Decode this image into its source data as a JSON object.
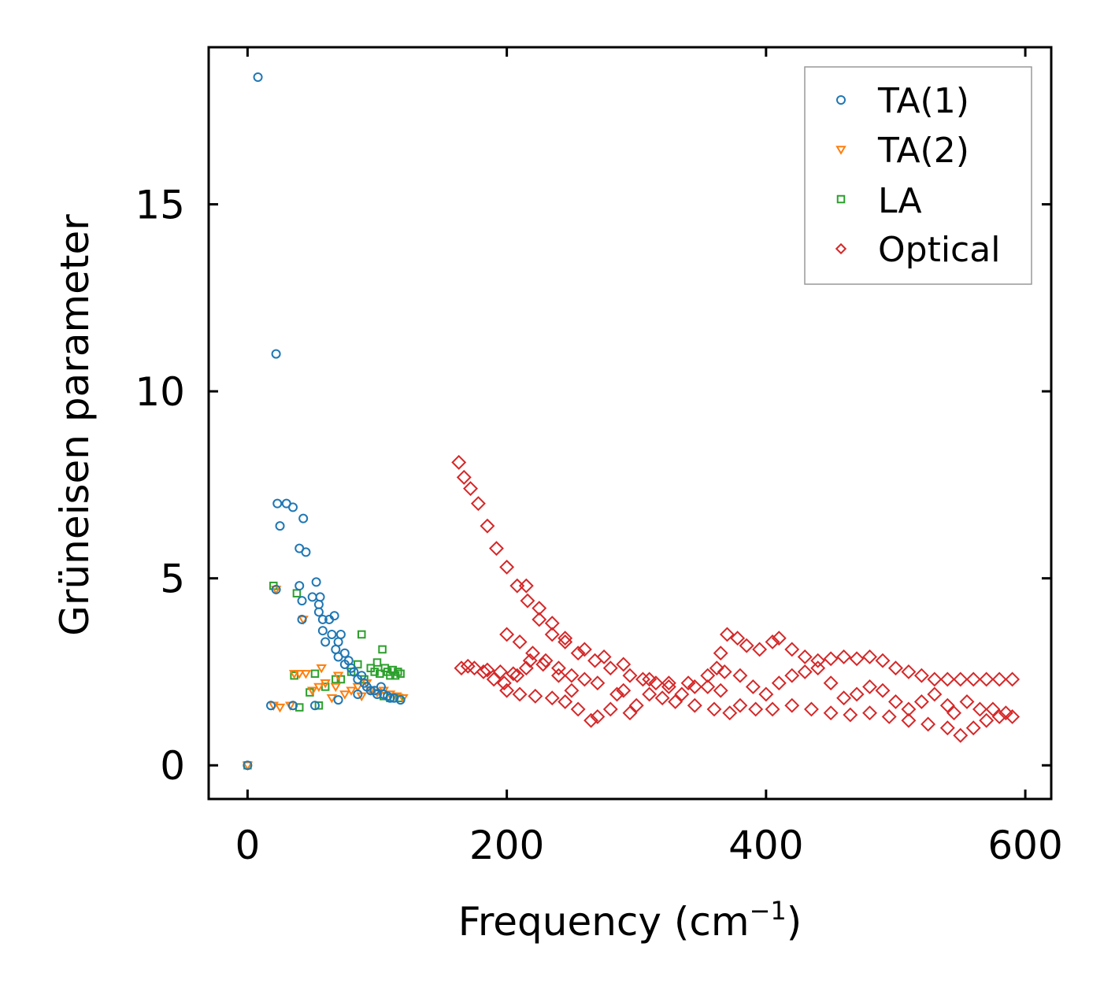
{
  "chart_data": {
    "type": "scatter",
    "title": "",
    "xlabel": "Frequency (cm",
    "xlabel_superscript": "−1",
    "xlabel_close": ")",
    "ylabel": "Grüneisen parameter",
    "xlim": [
      -30,
      620
    ],
    "ylim": [
      -0.9,
      19.2
    ],
    "x_ticks": [
      0,
      200,
      400,
      600
    ],
    "y_ticks": [
      0,
      5,
      10,
      15
    ],
    "x_tick_labels": [
      "0",
      "200",
      "400",
      "600"
    ],
    "y_tick_labels": [
      "0",
      "5",
      "10",
      "15"
    ],
    "legend_position": "top-right",
    "series": [
      {
        "name": "TA(1)",
        "marker": "circle",
        "color": "#1f77b4",
        "points": [
          [
            0,
            0
          ],
          [
            8,
            18.4
          ],
          [
            22,
            11
          ],
          [
            22,
            4.7
          ],
          [
            23,
            7
          ],
          [
            25,
            6.4
          ],
          [
            30,
            7
          ],
          [
            35,
            6.9
          ],
          [
            40,
            5.8
          ],
          [
            40,
            4.8
          ],
          [
            42,
            4.4
          ],
          [
            42,
            3.9
          ],
          [
            43,
            6.6
          ],
          [
            45,
            5.7
          ],
          [
            50,
            4.5
          ],
          [
            53,
            4.9
          ],
          [
            55,
            4.3
          ],
          [
            55,
            4.1
          ],
          [
            56,
            4.5
          ],
          [
            58,
            3.6
          ],
          [
            58,
            3.9
          ],
          [
            60,
            3.3
          ],
          [
            63,
            3.9
          ],
          [
            65,
            3.5
          ],
          [
            67,
            4.0
          ],
          [
            68,
            3.1
          ],
          [
            70,
            3.3
          ],
          [
            70,
            2.9
          ],
          [
            72,
            3.5
          ],
          [
            75,
            3.0
          ],
          [
            75,
            2.7
          ],
          [
            78,
            2.8
          ],
          [
            80,
            2.6
          ],
          [
            82,
            2.5
          ],
          [
            85,
            2.3
          ],
          [
            88,
            2.4
          ],
          [
            90,
            2.2
          ],
          [
            92,
            2.1
          ],
          [
            95,
            2.0
          ],
          [
            98,
            2.0
          ],
          [
            100,
            1.9
          ],
          [
            103,
            2.1
          ],
          [
            105,
            1.9
          ],
          [
            108,
            1.85
          ],
          [
            110,
            1.8
          ],
          [
            113,
            1.8
          ],
          [
            118,
            1.75
          ],
          [
            18,
            1.6
          ],
          [
            35,
            1.6
          ],
          [
            52,
            1.6
          ],
          [
            70,
            1.75
          ],
          [
            85,
            1.9
          ]
        ]
      },
      {
        "name": "TA(2)",
        "marker": "triangle-down",
        "color": "#ff7f0e",
        "points": [
          [
            0,
            0
          ],
          [
            20,
            1.6
          ],
          [
            25,
            1.55
          ],
          [
            33,
            1.6
          ],
          [
            36,
            2.45
          ],
          [
            40,
            2.45
          ],
          [
            45,
            2.45
          ],
          [
            50,
            2.0
          ],
          [
            55,
            2.1
          ],
          [
            57,
            2.6
          ],
          [
            60,
            2.2
          ],
          [
            65,
            1.8
          ],
          [
            68,
            2.1
          ],
          [
            70,
            2.4
          ],
          [
            75,
            1.9
          ],
          [
            80,
            2.0
          ],
          [
            85,
            2.1
          ],
          [
            88,
            1.85
          ],
          [
            92,
            2.2
          ],
          [
            95,
            2.0
          ],
          [
            100,
            1.95
          ],
          [
            105,
            2.0
          ],
          [
            110,
            1.9
          ],
          [
            115,
            1.85
          ],
          [
            120,
            1.8
          ],
          [
            22,
            4.7
          ],
          [
            43,
            3.9
          ]
        ]
      },
      {
        "name": "LA",
        "marker": "square",
        "color": "#2ca02c",
        "points": [
          [
            0,
            0
          ],
          [
            20,
            4.8
          ],
          [
            38,
            4.6
          ],
          [
            36,
            2.4
          ],
          [
            40,
            1.55
          ],
          [
            48,
            1.95
          ],
          [
            52,
            2.45
          ],
          [
            55,
            1.6
          ],
          [
            60,
            2.1
          ],
          [
            68,
            2.3
          ],
          [
            72,
            2.3
          ],
          [
            80,
            2.5
          ],
          [
            85,
            2.7
          ],
          [
            88,
            3.5
          ],
          [
            90,
            2.3
          ],
          [
            95,
            2.6
          ],
          [
            98,
            2.5
          ],
          [
            100,
            2.75
          ],
          [
            102,
            2.45
          ],
          [
            104,
            3.1
          ],
          [
            106,
            2.6
          ],
          [
            108,
            2.5
          ],
          [
            110,
            2.4
          ],
          [
            112,
            2.55
          ],
          [
            114,
            2.4
          ],
          [
            116,
            2.5
          ],
          [
            118,
            2.45
          ],
          [
            117,
            1.8
          ],
          [
            110,
            1.8
          ],
          [
            105,
            1.85
          ]
        ]
      },
      {
        "name": "Optical",
        "marker": "diamond",
        "color": "#d62728",
        "points": [
          [
            163,
            8.1
          ],
          [
            167,
            7.7
          ],
          [
            172,
            7.4
          ],
          [
            178,
            7.0
          ],
          [
            185,
            6.4
          ],
          [
            192,
            5.8
          ],
          [
            200,
            5.3
          ],
          [
            208,
            4.8
          ],
          [
            216,
            4.4
          ],
          [
            225,
            3.9
          ],
          [
            235,
            3.5
          ],
          [
            245,
            3.3
          ],
          [
            255,
            3.0
          ],
          [
            268,
            2.8
          ],
          [
            280,
            2.6
          ],
          [
            295,
            2.4
          ],
          [
            310,
            2.3
          ],
          [
            325,
            2.2
          ],
          [
            340,
            2.2
          ],
          [
            355,
            2.1
          ],
          [
            365,
            2.0
          ],
          [
            165,
            2.6
          ],
          [
            175,
            2.6
          ],
          [
            185,
            2.55
          ],
          [
            195,
            2.5
          ],
          [
            205,
            2.45
          ],
          [
            215,
            2.6
          ],
          [
            200,
            3.5
          ],
          [
            210,
            3.3
          ],
          [
            220,
            3.0
          ],
          [
            230,
            2.8
          ],
          [
            240,
            2.6
          ],
          [
            250,
            2.4
          ],
          [
            215,
            4.8
          ],
          [
            225,
            4.2
          ],
          [
            235,
            3.8
          ],
          [
            245,
            3.4
          ],
          [
            260,
            3.1
          ],
          [
            275,
            2.9
          ],
          [
            290,
            2.7
          ],
          [
            200,
            2.0
          ],
          [
            210,
            1.9
          ],
          [
            222,
            1.85
          ],
          [
            235,
            1.8
          ],
          [
            245,
            1.7
          ],
          [
            255,
            1.5
          ],
          [
            265,
            1.2
          ],
          [
            270,
            1.3
          ],
          [
            280,
            1.5
          ],
          [
            295,
            1.4
          ],
          [
            300,
            1.6
          ],
          [
            310,
            1.9
          ],
          [
            320,
            1.8
          ],
          [
            330,
            1.7
          ],
          [
            345,
            1.6
          ],
          [
            360,
            1.5
          ],
          [
            372,
            1.4
          ],
          [
            380,
            1.6
          ],
          [
            392,
            1.5
          ],
          [
            405,
            1.5
          ],
          [
            420,
            1.6
          ],
          [
            435,
            1.5
          ],
          [
            450,
            1.4
          ],
          [
            465,
            1.35
          ],
          [
            480,
            1.4
          ],
          [
            495,
            1.3
          ],
          [
            510,
            1.2
          ],
          [
            525,
            1.1
          ],
          [
            540,
            1.0
          ],
          [
            550,
            0.8
          ],
          [
            560,
            1.0
          ],
          [
            570,
            1.2
          ],
          [
            580,
            1.3
          ],
          [
            590,
            1.3
          ],
          [
            365,
            3.0
          ],
          [
            370,
            3.5
          ],
          [
            378,
            3.4
          ],
          [
            385,
            3.2
          ],
          [
            395,
            3.1
          ],
          [
            405,
            3.3
          ],
          [
            410,
            3.4
          ],
          [
            420,
            3.1
          ],
          [
            430,
            2.9
          ],
          [
            440,
            2.8
          ],
          [
            450,
            2.85
          ],
          [
            460,
            2.9
          ],
          [
            470,
            2.85
          ],
          [
            480,
            2.9
          ],
          [
            490,
            2.8
          ],
          [
            500,
            2.6
          ],
          [
            510,
            2.5
          ],
          [
            520,
            2.4
          ],
          [
            530,
            2.3
          ],
          [
            540,
            2.3
          ],
          [
            550,
            2.3
          ],
          [
            560,
            2.3
          ],
          [
            570,
            2.3
          ],
          [
            580,
            2.3
          ],
          [
            590,
            2.3
          ],
          [
            380,
            2.4
          ],
          [
            390,
            2.1
          ],
          [
            400,
            1.9
          ],
          [
            410,
            2.2
          ],
          [
            420,
            2.4
          ],
          [
            430,
            2.5
          ],
          [
            440,
            2.6
          ],
          [
            450,
            2.2
          ],
          [
            460,
            1.8
          ],
          [
            470,
            1.9
          ],
          [
            480,
            2.1
          ],
          [
            490,
            2.0
          ],
          [
            500,
            1.7
          ],
          [
            510,
            1.5
          ],
          [
            520,
            1.7
          ],
          [
            530,
            1.9
          ],
          [
            540,
            1.6
          ],
          [
            545,
            1.4
          ],
          [
            555,
            1.7
          ],
          [
            565,
            1.5
          ],
          [
            575,
            1.5
          ],
          [
            585,
            1.4
          ],
          [
            362,
            2.6
          ],
          [
            368,
            2.5
          ],
          [
            355,
            2.4
          ],
          [
            345,
            2.1
          ],
          [
            335,
            1.9
          ],
          [
            325,
            2.1
          ],
          [
            315,
            2.2
          ],
          [
            305,
            2.3
          ],
          [
            290,
            2.0
          ],
          [
            285,
            1.9
          ],
          [
            270,
            2.2
          ],
          [
            260,
            2.3
          ],
          [
            250,
            2.0
          ],
          [
            240,
            2.4
          ],
          [
            228,
            2.7
          ],
          [
            218,
            2.8
          ],
          [
            208,
            2.4
          ],
          [
            198,
            2.2
          ],
          [
            190,
            2.3
          ],
          [
            182,
            2.5
          ],
          [
            170,
            2.65
          ]
        ]
      }
    ]
  }
}
